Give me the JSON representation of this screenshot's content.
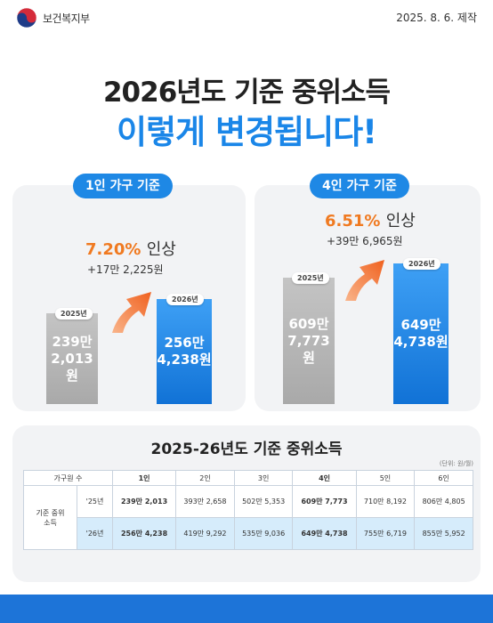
{
  "header": {
    "org": "보건복지부",
    "made": "2025. 8. 6. 제작"
  },
  "titles": {
    "line1": "2026년도 기준 중위소득",
    "line2": "이렇게 변경됩니다!"
  },
  "cards": [
    {
      "pill": "1인 가구 기준",
      "rate_pct": "7.20%",
      "rate_word": "인상",
      "diff": "+17만 2,225원",
      "old": {
        "year": "2025년",
        "line1": "239만",
        "line2": "2,013원"
      },
      "new": {
        "year": "2026년",
        "line1": "256만",
        "line2": "4,238원"
      }
    },
    {
      "pill": "4인 가구 기준",
      "rate_pct": "6.51%",
      "rate_word": "인상",
      "diff": "+39만 6,965원",
      "old": {
        "year": "2025년",
        "line1": "609만",
        "line2": "7,773원"
      },
      "new": {
        "year": "2026년",
        "line1": "649만",
        "line2": "4,738원"
      }
    }
  ],
  "table": {
    "title": "2025-26년도 기준 중위소득",
    "unit": "(단위: 원/월)",
    "corner": "가구원 수",
    "row_header": "기준 중위소득",
    "columns": [
      "1인",
      "2인",
      "3인",
      "4인",
      "5인",
      "6인"
    ],
    "rows": [
      {
        "year": "'25년",
        "values": [
          "239만 2,013",
          "393만 2,658",
          "502만 5,353",
          "609만 7,773",
          "710만 8,192",
          "806만 4,805"
        ]
      },
      {
        "year": "'26년",
        "values": [
          "256만 4,238",
          "419만 9,292",
          "535만 9,036",
          "649만 4,738",
          "755만 6,719",
          "855만 5,952"
        ]
      }
    ]
  },
  "colors": {
    "accent_blue": "#1a86e8",
    "accent_orange": "#f07a21"
  }
}
